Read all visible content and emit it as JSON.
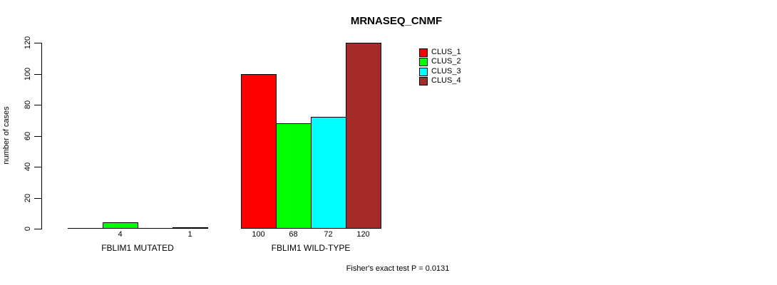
{
  "title": "MRNASEQ_CNMF",
  "y_axis": {
    "label": "number of cases"
  },
  "footer": "Fisher's exact test P = 0.0131",
  "legend": {
    "items": [
      {
        "label": "CLUS_1",
        "color": "#ff0000"
      },
      {
        "label": "CLUS_2",
        "color": "#00ff00"
      },
      {
        "label": "CLUS_3",
        "color": "#00ffff"
      },
      {
        "label": "CLUS_4",
        "color": "#a52a2a"
      }
    ]
  },
  "chart_data": {
    "type": "bar",
    "title": "MRNASEQ_CNMF",
    "ylabel": "number of cases",
    "xlabel": "",
    "yticks": [
      0,
      20,
      40,
      60,
      80,
      100,
      120
    ],
    "ylim": [
      0,
      120
    ],
    "grid": false,
    "legend_position": "top-right",
    "categories": [
      "FBLIM1 MUTATED",
      "FBLIM1 WILD-TYPE"
    ],
    "series": [
      {
        "name": "CLUS_1",
        "color": "#ff0000",
        "values": [
          0,
          100
        ]
      },
      {
        "name": "CLUS_2",
        "color": "#00ff00",
        "values": [
          4,
          68
        ]
      },
      {
        "name": "CLUS_3",
        "color": "#00ffff",
        "values": [
          0,
          72
        ]
      },
      {
        "name": "CLUS_4",
        "color": "#a52a2a",
        "values": [
          1,
          120
        ]
      }
    ],
    "bar_value_labels": [
      [
        "",
        "4",
        "",
        "1"
      ],
      [
        "100",
        "68",
        "72",
        "120"
      ]
    ],
    "annotation": "Fisher's exact test P = 0.0131"
  }
}
